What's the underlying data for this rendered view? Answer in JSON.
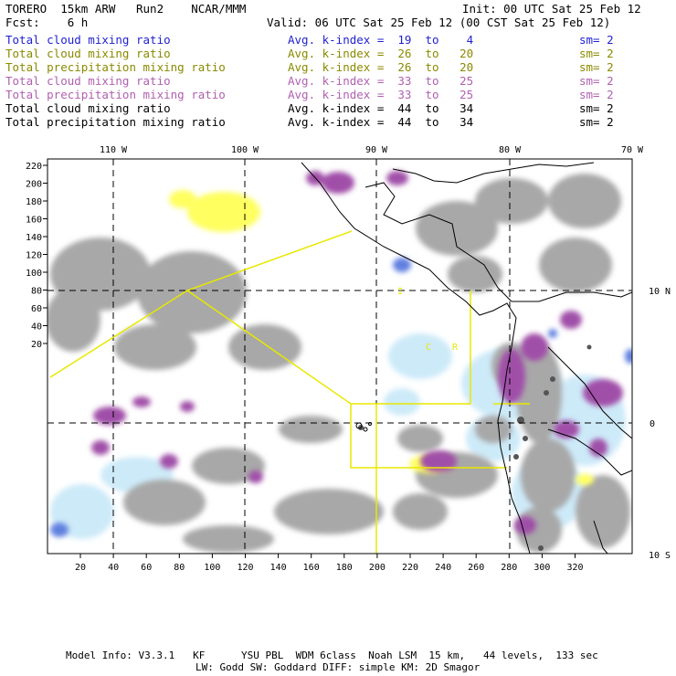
{
  "header": {
    "model": "TORERO  15km ARW   Run2    NCAR/MMM",
    "init": "Init: 00 UTC Sat 25 Feb 12",
    "fcst": "Fcst:    6 h",
    "valid": "Valid: 06 UTC Sat 25 Feb 12 (00 CST Sat 25 Feb 12)"
  },
  "legend": [
    {
      "field": "Total cloud mixing ratio",
      "kindex": "Avg. k-index =  19  to    4",
      "sm": "sm= 2",
      "color": "#1f1fd0"
    },
    {
      "field": "Total cloud mixing ratio",
      "kindex": "Avg. k-index =  26  to   20",
      "sm": "sm= 2",
      "color": "#8a8a00"
    },
    {
      "field": "Total precipitation mixing ratio",
      "kindex": "Avg. k-index =  26  to   20",
      "sm": "sm= 2",
      "color": "#8a8a00"
    },
    {
      "field": "Total cloud mixing ratio",
      "kindex": "Avg. k-index =  33  to   25",
      "sm": "sm= 2",
      "color": "#b060b0"
    },
    {
      "field": "Total precipitation mixing ratio",
      "kindex": "Avg. k-index =  33  to   25",
      "sm": "sm= 2",
      "color": "#b060b0"
    },
    {
      "field": "Total cloud mixing ratio",
      "kindex": "Avg. k-index =  44  to   34",
      "sm": "sm= 2",
      "color": "#000000"
    },
    {
      "field": "Total precipitation mixing ratio",
      "kindex": "Avg. k-index =  44  to   34",
      "sm": "sm= 2",
      "color": "#000000"
    }
  ],
  "map": {
    "lon_labels": [
      "110 W",
      "100 W",
      "90 W",
      "80 W",
      "70 W"
    ],
    "lat_labels": [
      "10 N",
      "0",
      "10 S"
    ],
    "x_ticks": [
      "20",
      "40",
      "60",
      "80",
      "100",
      "120",
      "140",
      "160",
      "180",
      "200",
      "220",
      "240",
      "260",
      "280",
      "300",
      "320"
    ],
    "y_ticks": [
      "220",
      "200",
      "180",
      "160",
      "140",
      "120",
      "100",
      "80",
      "60",
      "40",
      "20"
    ],
    "region_labels": [
      "I",
      "C",
      "R"
    ],
    "colors": {
      "gray": "#a8a8a8",
      "yellow": "#ffff60",
      "purple": "#a050a8",
      "lightblue": "#c8e8f8",
      "blue": "#6080e0",
      "boundary": "#e8e800"
    }
  },
  "footer": {
    "line1": "Model Info: V3.3.1   KF      YSU PBL  WDM 6class  Noah LSM  15 km,   44 levels,  133 sec",
    "line2": "LW: Godd SW: Goddard DIFF: simple KM: 2D Smagor"
  }
}
